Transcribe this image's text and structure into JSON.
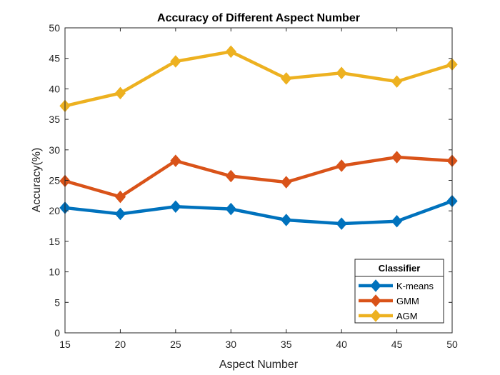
{
  "chart_data": {
    "type": "line",
    "title": "Accuracy of Different Aspect Number",
    "xlabel": "Aspect Number",
    "ylabel": "Accuracy(%)",
    "x": [
      15,
      20,
      25,
      30,
      35,
      40,
      45,
      50
    ],
    "xlim": [
      15,
      50
    ],
    "ylim": [
      0,
      50
    ],
    "xticks": [
      "15",
      "20",
      "25",
      "30",
      "35",
      "40",
      "45",
      "50"
    ],
    "yticks": [
      "0",
      "5",
      "10",
      "15",
      "20",
      "25",
      "30",
      "35",
      "40",
      "45",
      "50"
    ],
    "grid": false,
    "legend": {
      "title": "Classifier",
      "placement": "bottom-right"
    },
    "series": [
      {
        "name": "K-means",
        "color": "#0072BD",
        "marker": "diamond",
        "values": [
          20.5,
          19.5,
          20.7,
          20.3,
          18.5,
          17.9,
          18.3,
          21.6
        ]
      },
      {
        "name": "GMM",
        "color": "#D95319",
        "marker": "diamond",
        "values": [
          24.9,
          22.3,
          28.2,
          25.7,
          24.7,
          27.4,
          28.8,
          28.2
        ]
      },
      {
        "name": "AGM",
        "color": "#EDB120",
        "marker": "diamond",
        "values": [
          37.2,
          39.3,
          44.5,
          46.1,
          41.7,
          42.6,
          41.2,
          44.0
        ]
      }
    ]
  }
}
